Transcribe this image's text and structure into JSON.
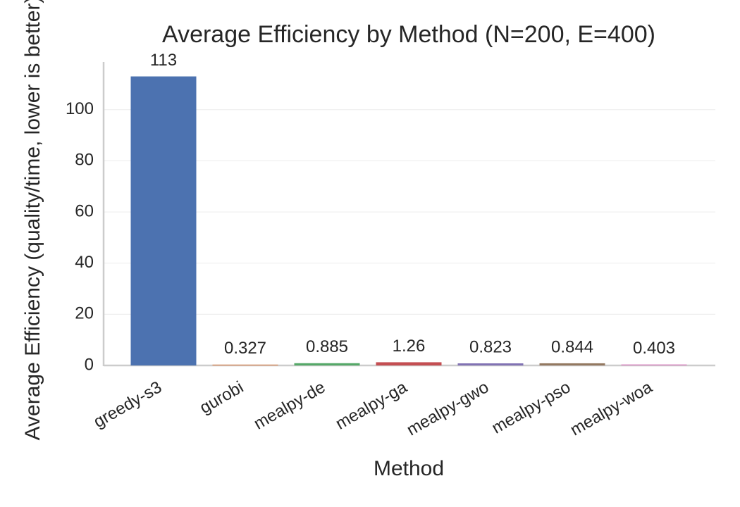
{
  "chart_data": {
    "type": "bar",
    "title": "Average Efficiency by Method (N=200, E=400)",
    "xlabel": "Method",
    "ylabel": "Average Efficiency (quality/time, lower is better)",
    "categories": [
      "greedy-s3",
      "gurobi",
      "mealpy-de",
      "mealpy-ga",
      "mealpy-gwo",
      "mealpy-pso",
      "mealpy-woa"
    ],
    "values": [
      113,
      0.327,
      0.885,
      1.26,
      0.823,
      0.844,
      0.403
    ],
    "colors": [
      "#4c72b0",
      "#dd8452",
      "#55a868",
      "#c44e52",
      "#8172b3",
      "#937860",
      "#da8bc3"
    ],
    "ylim": [
      0,
      118.65
    ],
    "yticks": [
      0,
      20,
      40,
      60,
      80,
      100
    ],
    "grid": true
  }
}
